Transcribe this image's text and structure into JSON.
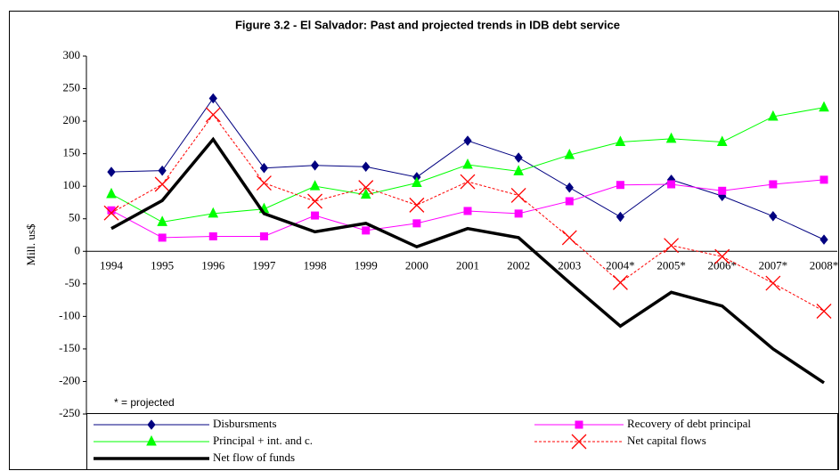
{
  "chart_data": {
    "type": "line",
    "title": "Figure 3.2   -  El Salvador: Past and projected trends in IDB debt service",
    "y_label": "Mill. us$",
    "annotation": "* = projected",
    "categories": [
      "1994",
      "1995",
      "1996",
      "1997",
      "1998",
      "1999",
      "2000",
      "2001",
      "2002",
      "2003",
      "2004*",
      "2005*",
      "2006*",
      "2007*",
      "2008*"
    ],
    "ylim": [
      -250,
      300
    ],
    "yticks": [
      -250,
      -200,
      -150,
      -100,
      -50,
      0,
      50,
      100,
      150,
      200,
      250,
      300
    ],
    "grid": false,
    "legend": "bottom",
    "series": [
      {
        "name": "Disbursments",
        "color": "#000080",
        "marker": "diamond",
        "line_style": "solid",
        "values": [
          122,
          124,
          235,
          128,
          132,
          130,
          114,
          170,
          144,
          98,
          53,
          110,
          85,
          54,
          18
        ]
      },
      {
        "name": "Recovery of debt principal",
        "color": "#ff00ff",
        "marker": "square",
        "line_style": "solid",
        "values": [
          63,
          21,
          23,
          23,
          55,
          32,
          43,
          62,
          58,
          77,
          102,
          103,
          93,
          103,
          110
        ]
      },
      {
        "name": "Principal + int. and c.",
        "color": "#00ff00",
        "marker": "triangle",
        "line_style": "solid",
        "values": [
          88,
          45,
          58,
          65,
          100,
          87,
          105,
          133,
          123,
          148,
          168,
          173,
          168,
          207,
          221
        ]
      },
      {
        "name": "Net capital flows",
        "color": "#ff0000",
        "marker": "x",
        "line_style": "dashed",
        "values": [
          59,
          103,
          210,
          105,
          77,
          98,
          71,
          107,
          86,
          21,
          -48,
          9,
          -8,
          -49,
          -92
        ]
      },
      {
        "name": "Net flow of funds",
        "color": "#000000",
        "marker": "none",
        "line_style": "thick",
        "values": [
          35,
          78,
          172,
          58,
          30,
          43,
          7,
          35,
          21,
          -48,
          -115,
          -63,
          -84,
          -150,
          -202
        ]
      }
    ]
  }
}
